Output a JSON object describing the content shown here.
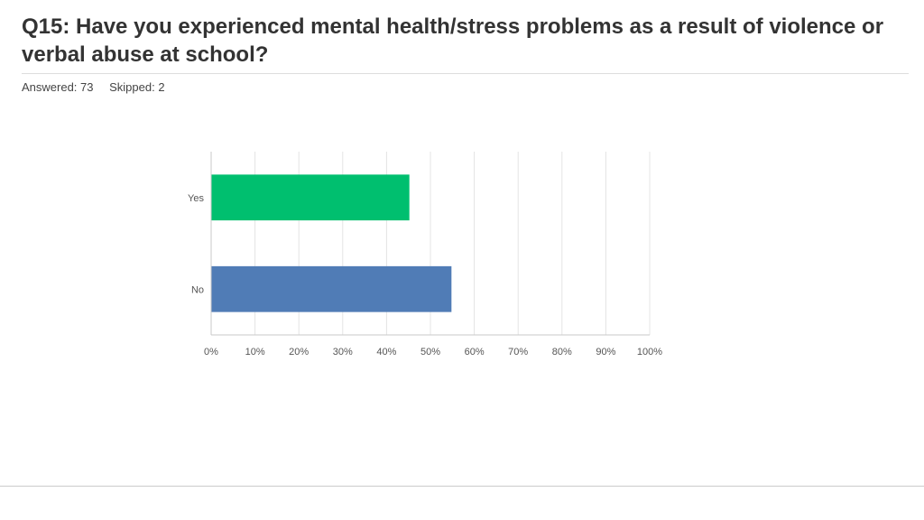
{
  "question": {
    "title": "Q15: Have you experienced mental health/stress problems as a result of violence or verbal abuse at school?"
  },
  "stats": {
    "answered": "Answered: 73",
    "skipped": "Skipped: 2"
  },
  "chart_data": {
    "type": "bar",
    "orientation": "horizontal",
    "categories": [
      "Yes",
      "No"
    ],
    "values": [
      45.2,
      54.8
    ],
    "colors": [
      "#00bf6f",
      "#507cb6"
    ],
    "xlim": [
      0,
      100
    ],
    "x_ticks": [
      "0%",
      "10%",
      "20%",
      "30%",
      "40%",
      "50%",
      "60%",
      "70%",
      "80%",
      "90%",
      "100%"
    ],
    "grid": true,
    "title": "",
    "xlabel": "",
    "ylabel": ""
  }
}
